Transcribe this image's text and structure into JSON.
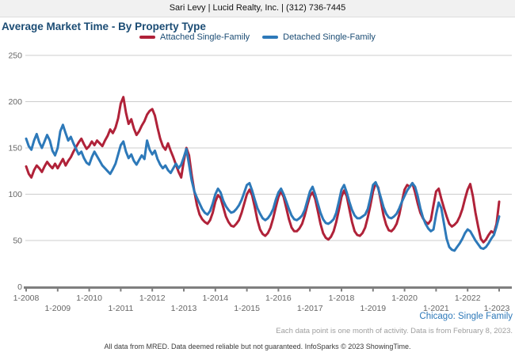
{
  "header": {
    "title": "Sari Levy | Lucid Realty, Inc. | (312) 736-7445"
  },
  "page": {
    "title": "Average Market Time - By Property Type",
    "watermark": "Chicago: Single Family",
    "note": "Each data point is one month of activity. Data is from February 8, 2023.",
    "footer": "All data from MRED. Data deemed reliable but not guaranteed. InfoSparks © 2023 ShowingTime."
  },
  "colors": {
    "attached_red": "#b02239",
    "detached_blue": "#2d79b9",
    "title_navy": "#1b4c74",
    "gridline": "#cccccc",
    "axis": "#7f7f7f",
    "tick_text": "#666666"
  },
  "chart_data": {
    "type": "line",
    "title": "Average Market Time - By Property Type",
    "x_interval": "monthly",
    "x_start": "1-2008",
    "x_end": "1-2023",
    "x_tick_labels": [
      "1-2008",
      "1-2009",
      "1-2010",
      "1-2011",
      "1-2012",
      "1-2013",
      "1-2014",
      "1-2015",
      "1-2016",
      "1-2017",
      "1-2018",
      "1-2019",
      "1-2020",
      "1-2021",
      "1-2022",
      "1-2023"
    ],
    "ylim": [
      0,
      250
    ],
    "y_ticks": [
      0,
      50,
      100,
      150,
      200,
      250
    ],
    "grid": true,
    "legend_position": "top-center",
    "series": [
      {
        "name": "Attached Single-Family",
        "color": "#b02239",
        "values": [
          130,
          122,
          118,
          126,
          131,
          128,
          124,
          130,
          135,
          131,
          128,
          133,
          128,
          133,
          138,
          131,
          136,
          140,
          146,
          151,
          156,
          160,
          154,
          149,
          152,
          157,
          153,
          158,
          155,
          152,
          158,
          163,
          170,
          166,
          172,
          182,
          198,
          205,
          188,
          176,
          181,
          171,
          164,
          168,
          174,
          179,
          186,
          190,
          192,
          185,
          172,
          160,
          152,
          148,
          155,
          147,
          140,
          132,
          124,
          118,
          136,
          150,
          142,
          121,
          103,
          88,
          78,
          73,
          70,
          68,
          72,
          80,
          92,
          99,
          96,
          86,
          76,
          70,
          66,
          65,
          68,
          72,
          80,
          90,
          100,
          105,
          99,
          86,
          72,
          62,
          57,
          55,
          58,
          64,
          74,
          86,
          97,
          103,
          97,
          85,
          73,
          64,
          60,
          60,
          63,
          68,
          77,
          88,
          98,
          102,
          95,
          82,
          68,
          58,
          53,
          51,
          54,
          60,
          70,
          83,
          97,
          104,
          98,
          84,
          70,
          60,
          56,
          55,
          58,
          64,
          75,
          88,
          103,
          112,
          107,
          92,
          77,
          67,
          61,
          60,
          63,
          68,
          78,
          92,
          105,
          110,
          108,
          112,
          102,
          90,
          80,
          74,
          70,
          68,
          72,
          88,
          103,
          106,
          95,
          85,
          76,
          68,
          65,
          67,
          70,
          76,
          84,
          95,
          105,
          111,
          98,
          80,
          65,
          52,
          48,
          51,
          56,
          60,
          58,
          68,
          92
        ]
      },
      {
        "name": "Detached Single-Family",
        "color": "#2d79b9",
        "values": [
          160,
          152,
          148,
          158,
          165,
          156,
          150,
          157,
          164,
          158,
          147,
          142,
          150,
          168,
          175,
          166,
          158,
          162,
          155,
          149,
          143,
          146,
          139,
          134,
          132,
          140,
          146,
          141,
          136,
          131,
          128,
          125,
          122,
          127,
          133,
          143,
          153,
          157,
          146,
          139,
          143,
          136,
          132,
          137,
          142,
          138,
          158,
          148,
          143,
          147,
          138,
          132,
          128,
          131,
          126,
          123,
          128,
          133,
          128,
          132,
          140,
          149,
          132,
          115,
          103,
          96,
          90,
          84,
          80,
          78,
          82,
          90,
          100,
          106,
          102,
          93,
          87,
          83,
          80,
          81,
          84,
          88,
          94,
          102,
          110,
          112,
          104,
          94,
          85,
          79,
          74,
          72,
          74,
          78,
          84,
          94,
          102,
          106,
          100,
          92,
          84,
          77,
          73,
          72,
          74,
          77,
          83,
          93,
          103,
          108,
          100,
          90,
          80,
          73,
          69,
          68,
          70,
          73,
          80,
          92,
          105,
          110,
          102,
          92,
          83,
          77,
          74,
          74,
          76,
          78,
          84,
          96,
          110,
          113,
          106,
          96,
          86,
          79,
          75,
          74,
          76,
          79,
          85,
          92,
          98,
          104,
          108,
          112,
          108,
          98,
          85,
          75,
          68,
          63,
          60,
          62,
          78,
          91,
          85,
          68,
          52,
          43,
          40,
          39,
          43,
          47,
          52,
          58,
          62,
          60,
          55,
          50,
          46,
          42,
          41,
          43,
          47,
          52,
          56,
          65,
          76
        ]
      }
    ]
  }
}
